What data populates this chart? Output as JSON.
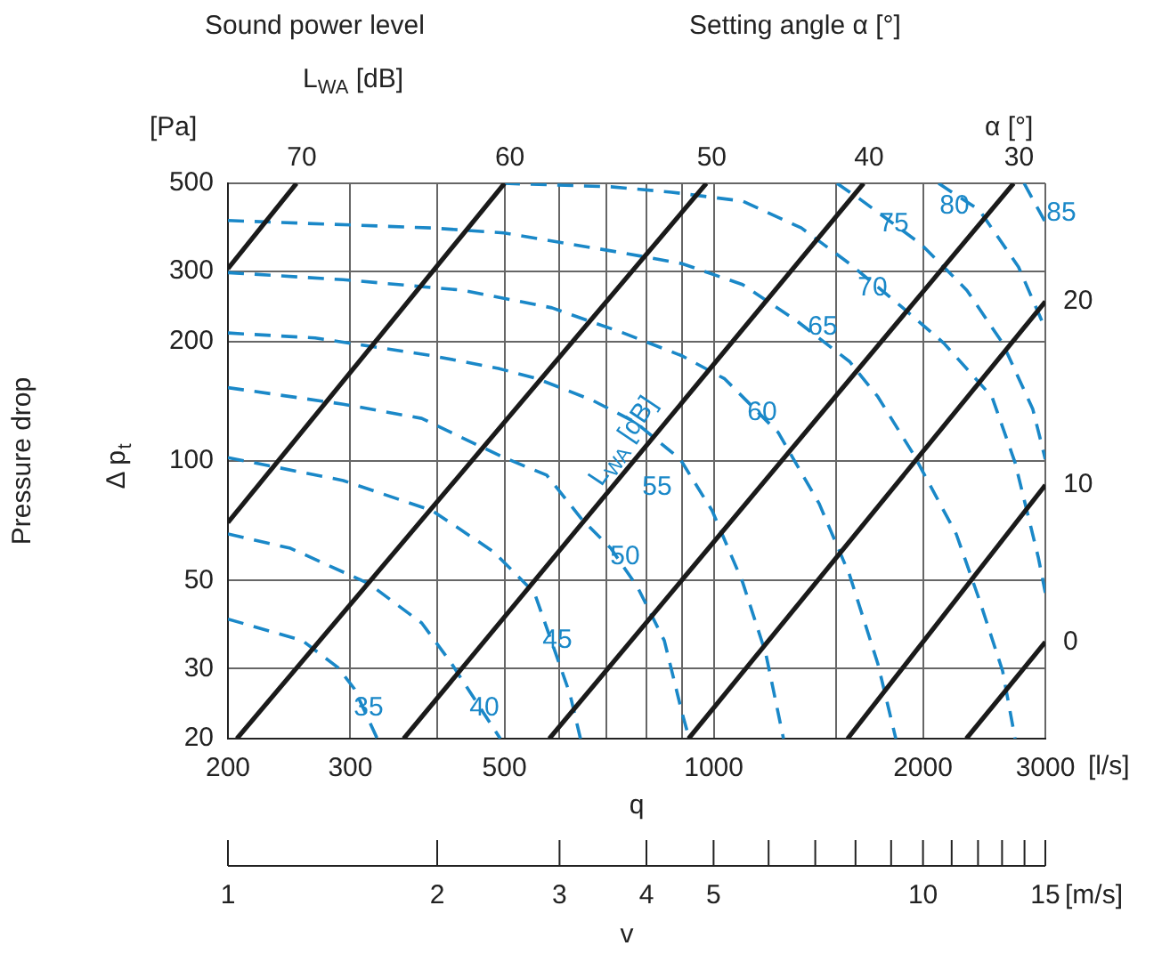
{
  "chart_data": [
    {
      "type": "line",
      "xlabel": "q",
      "ylabel": "Pressure drop",
      "annotations": [
        "Sound power level",
        "L$_{WA}$ [dB]",
        "Setting angle α [°]",
        "α [°]",
        "[Pa]",
        "Δ p$_{t}$",
        "L$_{WA}$ [dB]",
        "[l/s]"
      ],
      "log": "xy",
      "grid": true,
      "legend": false,
      "marker": "none",
      "xlim": [
        200,
        3000
      ],
      "xticks": [
        200,
        300,
        {
          "value": 400,
          "label": null
        },
        500,
        {
          "value": 600,
          "label": null
        },
        {
          "value": 700,
          "label": null
        },
        {
          "value": 800,
          "label": null
        },
        {
          "value": 900,
          "label": null
        },
        1000,
        {
          "value": 1500,
          "label": null
        },
        2000,
        3000
      ],
      "ylim": [
        20,
        500
      ],
      "yticks": [
        20,
        30,
        50,
        100,
        200,
        300,
        500
      ],
      "series": [
        {
          "name": "70",
          "color": "#1a1a1a",
          "line_style": "solid",
          "x": [
            200,
            251
          ],
          "values": [
            305,
            500
          ]
        },
        {
          "name": "60",
          "color": "#1a1a1a",
          "line_style": "solid",
          "x": [
            200,
            500
          ],
          "values": [
            70,
            500
          ]
        },
        {
          "name": "50",
          "color": "#1a1a1a",
          "line_style": "solid",
          "x": [
            206,
            976
          ],
          "values": [
            20,
            500
          ]
        },
        {
          "name": "40",
          "color": "#1a1a1a",
          "line_style": "solid",
          "x": [
            358,
            1643
          ],
          "values": [
            20,
            500
          ]
        },
        {
          "name": "30",
          "color": "#1a1a1a",
          "line_style": "solid",
          "x": [
            580,
            2701
          ],
          "values": [
            20,
            500
          ]
        },
        {
          "name": "20",
          "color": "#1a1a1a",
          "line_style": "solid",
          "x": [
            920,
            3000
          ],
          "values": [
            20,
            252
          ]
        },
        {
          "name": "10",
          "color": "#1a1a1a",
          "line_style": "solid",
          "x": [
            1558,
            3000
          ],
          "values": [
            20,
            87
          ]
        },
        {
          "name": "0",
          "color": "#1a1a1a",
          "line_style": "solid",
          "x": [
            2309,
            3000
          ],
          "values": [
            20,
            35
          ]
        },
        {
          "name": "35",
          "color": "#1a88c8",
          "line_style": "dashed",
          "x": [
            200,
            256,
            288,
            304,
            328
          ],
          "values": [
            40,
            35.3,
            30.2,
            26.7,
            20
          ]
        },
        {
          "name": "40",
          "color": "#1a88c8",
          "line_style": "dashed",
          "x": [
            200,
            246,
            319,
            380,
            418,
            493
          ],
          "values": [
            65.5,
            60.3,
            49.1,
            39.1,
            31.2,
            20
          ]
        },
        {
          "name": "45",
          "color": "#1a88c8",
          "line_style": "dashed",
          "x": [
            200,
            293,
            394,
            482,
            552,
            621,
            643
          ],
          "values": [
            102,
            89.3,
            74.9,
            59.1,
            46.6,
            25.9,
            20
          ]
        },
        {
          "name": "50",
          "color": "#1a88c8",
          "line_style": "dashed",
          "x": [
            200,
            293,
            380,
            499,
            575,
            647,
            711,
            777,
            849,
            900,
            922
          ],
          "values": [
            153,
            139,
            128,
            102,
            92.1,
            71.1,
            60.3,
            48.1,
            35.3,
            23.3,
            20
          ]
        },
        {
          "name": "55",
          "color": "#1a88c8",
          "line_style": "dashed",
          "x": [
            200,
            267,
            394,
            490,
            558,
            670,
            772,
            895,
            995,
            1100,
            1188,
            1260
          ],
          "values": [
            210,
            204,
            184,
            171,
            161,
            142,
            125,
            101,
            74.9,
            49.6,
            32.8,
            20
          ]
        },
        {
          "name": "60",
          "color": "#1a88c8",
          "line_style": "dashed",
          "x": [
            200,
            293,
            436,
            585,
            741,
            900,
            1037,
            1238,
            1418,
            1568,
            1723,
            1828
          ],
          "values": [
            298,
            286,
            269,
            243,
            210,
            184,
            161,
            118,
            78.1,
            51.7,
            30.8,
            20
          ]
        },
        {
          "name": "65",
          "color": "#1a88c8",
          "line_style": "dashed",
          "x": [
            200,
            394,
            499,
            741,
            900,
            1100,
            1313,
            1568,
            1723,
            1938,
            2233,
            2411,
            2604,
            2714
          ],
          "values": [
            403,
            386,
            375,
            334,
            314,
            278,
            226,
            178,
            145,
            104,
            65.5,
            44.7,
            29.6,
            20
          ]
        },
        {
          "name": "70",
          "color": "#1a88c8",
          "line_style": "dashed",
          "x": [
            499,
            711,
            869,
            1100,
            1337,
            1568,
            1871,
            2143,
            2514,
            2714,
            2930,
            3000
          ],
          "values": [
            500,
            490,
            475,
            451,
            386,
            314,
            243,
            198,
            145,
            99,
            57.3,
            46.6
          ]
        },
        {
          "name": "75",
          "color": "#1a88c8",
          "line_style": "dashed",
          "x": [
            1504,
            1624,
            1985,
            2313,
            2604,
            2878,
            3000
          ],
          "values": [
            500,
            456,
            352,
            269,
            198,
            135,
            101
          ]
        },
        {
          "name": "80",
          "color": "#1a88c8",
          "line_style": "dashed",
          "x": [
            2106,
            2411,
            2745,
            3000
          ],
          "values": [
            500,
            428,
            308,
            215
          ]
        },
        {
          "name": "85",
          "color": "#1a88c8",
          "line_style": "dashed",
          "x": [
            2796,
            3000
          ],
          "values": [
            500,
            399
          ]
        }
      ]
    },
    {
      "type": "other",
      "xlabel": "v",
      "annotations": [
        "1",
        "2",
        "3",
        "4",
        "5",
        "10",
        "15",
        "[m/s]"
      ]
    }
  ]
}
